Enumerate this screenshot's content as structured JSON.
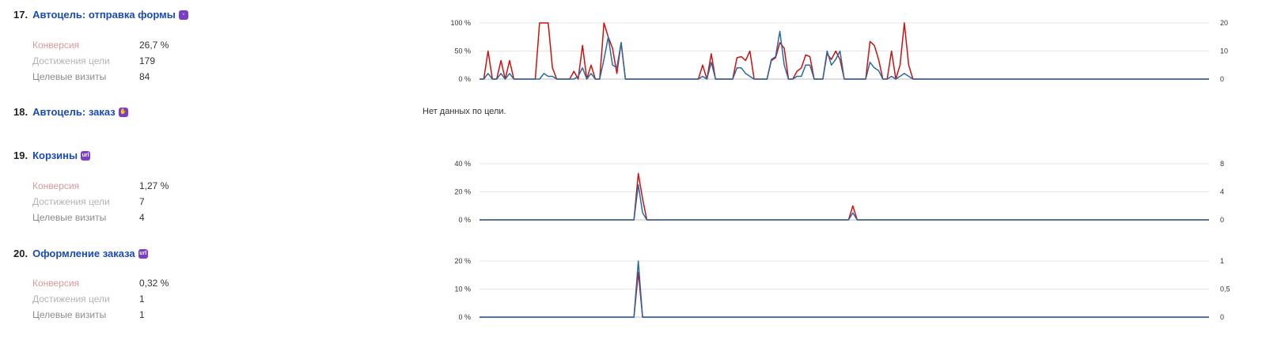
{
  "goals": [
    {
      "number": "17.",
      "title": "Автоцель: отправка формы",
      "badge_icon": "form-icon",
      "stats": [
        {
          "label": "Конверсия",
          "value": "26,7 %"
        },
        {
          "label": "Достижения цели",
          "value": "179"
        },
        {
          "label": "Целевые визиты",
          "value": "84"
        }
      ]
    },
    {
      "number": "18.",
      "title": "Автоцель: заказ",
      "badge_icon": "hand-icon",
      "no_data": "Нет данных по цели."
    },
    {
      "number": "19.",
      "title": "Корзины",
      "badge_icon": "url-icon",
      "stats": [
        {
          "label": "Конверсия",
          "value": "1,27 %"
        },
        {
          "label": "Достижения цели",
          "value": "7"
        },
        {
          "label": "Целевые визиты",
          "value": "4"
        }
      ]
    },
    {
      "number": "20.",
      "title": "Оформление заказа",
      "badge_icon": "url-icon",
      "stats": [
        {
          "label": "Конверсия",
          "value": "0,32 %"
        },
        {
          "label": "Достижения цели",
          "value": "1"
        },
        {
          "label": "Целевые визиты",
          "value": "1"
        }
      ]
    }
  ],
  "colors": {
    "conversion": "#cc1111",
    "visits": "#2b6aa0",
    "grid": "#e6e6e6",
    "title": "#1a4bb5"
  },
  "chart_data": [
    {
      "type": "line",
      "goal": "17.",
      "points_count": 101,
      "y_left": {
        "ticks": [
          "0 %",
          "50 %",
          "100 %"
        ],
        "range": [
          0,
          100
        ]
      },
      "y_right": {
        "ticks": [
          "0",
          "10",
          "20"
        ],
        "range": [
          0,
          20
        ]
      },
      "series": [
        {
          "color": "#cc1111",
          "axis": "left",
          "points": [
            [
              0,
              0
            ],
            [
              1,
              0
            ],
            [
              2,
              50
            ],
            [
              3,
              0
            ],
            [
              4,
              0
            ],
            [
              5,
              33
            ],
            [
              6,
              0
            ],
            [
              7,
              33
            ],
            [
              8,
              0
            ],
            [
              9,
              0
            ],
            [
              10,
              0
            ],
            [
              11,
              0
            ],
            [
              12,
              0
            ],
            [
              13,
              0
            ],
            [
              14,
              100
            ],
            [
              15,
              100
            ],
            [
              16,
              100
            ],
            [
              17,
              20
            ],
            [
              18,
              0
            ],
            [
              19,
              0
            ],
            [
              20,
              0
            ],
            [
              21,
              0
            ],
            [
              22,
              14
            ],
            [
              23,
              0
            ],
            [
              24,
              60
            ],
            [
              25,
              0
            ],
            [
              26,
              25
            ],
            [
              27,
              0
            ],
            [
              28,
              0
            ],
            [
              29,
              100
            ],
            [
              30,
              75
            ],
            [
              31,
              55
            ],
            [
              32,
              10
            ],
            [
              33,
              65
            ],
            [
              34,
              0
            ],
            [
              38,
              0
            ],
            [
              50,
              0
            ],
            [
              51,
              0
            ],
            [
              52,
              25
            ],
            [
              53,
              0
            ],
            [
              54,
              45
            ],
            [
              55,
              0
            ],
            [
              56,
              0
            ],
            [
              57,
              0
            ],
            [
              58,
              0
            ],
            [
              59,
              0
            ],
            [
              60,
              38
            ],
            [
              61,
              40
            ],
            [
              62,
              33
            ],
            [
              63,
              50
            ],
            [
              64,
              0
            ],
            [
              65,
              0
            ],
            [
              66,
              0
            ],
            [
              67,
              0
            ],
            [
              68,
              33
            ],
            [
              69,
              38
            ],
            [
              70,
              65
            ],
            [
              71,
              55
            ],
            [
              72,
              0
            ],
            [
              73,
              0
            ],
            [
              74,
              14
            ],
            [
              75,
              20
            ],
            [
              76,
              43
            ],
            [
              77,
              40
            ],
            [
              78,
              0
            ],
            [
              79,
              0
            ],
            [
              80,
              0
            ],
            [
              81,
              45
            ],
            [
              82,
              35
            ],
            [
              83,
              50
            ],
            [
              84,
              35
            ],
            [
              85,
              0
            ],
            [
              86,
              0
            ],
            [
              87,
              0
            ],
            [
              88,
              0
            ],
            [
              89,
              0
            ],
            [
              90,
              0
            ],
            [
              91,
              67
            ],
            [
              92,
              60
            ],
            [
              93,
              35
            ],
            [
              94,
              0
            ],
            [
              95,
              0
            ],
            [
              96,
              50
            ],
            [
              97,
              0
            ],
            [
              98,
              25
            ],
            [
              99,
              100
            ],
            [
              100,
              25
            ],
            [
              101,
              0
            ],
            [
              116,
              0
            ],
            [
              119,
              0
            ],
            [
              170,
              0
            ]
          ]
        },
        {
          "color": "#2b6aa0",
          "axis": "right",
          "points": [
            [
              0,
              0
            ],
            [
              1,
              0
            ],
            [
              2,
              2
            ],
            [
              3,
              0
            ],
            [
              4,
              0
            ],
            [
              5,
              2
            ],
            [
              6,
              0
            ],
            [
              7,
              2
            ],
            [
              8,
              0
            ],
            [
              14,
              0
            ],
            [
              15,
              2
            ],
            [
              16,
              1
            ],
            [
              17,
              1
            ],
            [
              18,
              0
            ],
            [
              22,
              0
            ],
            [
              23,
              1
            ],
            [
              24,
              4
            ],
            [
              25,
              0
            ],
            [
              26,
              2
            ],
            [
              27,
              0
            ],
            [
              28,
              0
            ],
            [
              29,
              7
            ],
            [
              30,
              15
            ],
            [
              31,
              5
            ],
            [
              32,
              4
            ],
            [
              33,
              13
            ],
            [
              34,
              0
            ],
            [
              51,
              0
            ],
            [
              52,
              1
            ],
            [
              53,
              0
            ],
            [
              54,
              6
            ],
            [
              55,
              0
            ],
            [
              56,
              0
            ],
            [
              58,
              0
            ],
            [
              59,
              0
            ],
            [
              60,
              4
            ],
            [
              61,
              4
            ],
            [
              62,
              2
            ],
            [
              63,
              1
            ],
            [
              64,
              0
            ],
            [
              67,
              0
            ],
            [
              68,
              7
            ],
            [
              69,
              8
            ],
            [
              70,
              17
            ],
            [
              71,
              5
            ],
            [
              72,
              0
            ],
            [
              73,
              0
            ],
            [
              74,
              1
            ],
            [
              75,
              1
            ],
            [
              76,
              5
            ],
            [
              77,
              5
            ],
            [
              78,
              0
            ],
            [
              80,
              0
            ],
            [
              81,
              10
            ],
            [
              82,
              5
            ],
            [
              83,
              7
            ],
            [
              84,
              10
            ],
            [
              85,
              0
            ],
            [
              90,
              0
            ],
            [
              91,
              6
            ],
            [
              92,
              4
            ],
            [
              93,
              3
            ],
            [
              94,
              0
            ],
            [
              95,
              0
            ],
            [
              96,
              1
            ],
            [
              97,
              0
            ],
            [
              98,
              1
            ],
            [
              99,
              2
            ],
            [
              100,
              1
            ],
            [
              101,
              0
            ],
            [
              170,
              0
            ]
          ]
        }
      ]
    },
    {
      "type": "line",
      "goal": "19.",
      "y_left": {
        "ticks": [
          "0 %",
          "20 %",
          "40 %"
        ],
        "range": [
          0,
          40
        ]
      },
      "y_right": {
        "ticks": [
          "0",
          "4",
          "8"
        ],
        "range": [
          0,
          8
        ]
      },
      "series": [
        {
          "color": "#cc1111",
          "axis": "left",
          "points": [
            [
              0,
              0
            ],
            [
              36,
              0
            ],
            [
              37,
              33
            ],
            [
              38,
              15
            ],
            [
              39,
              0
            ],
            [
              86,
              0
            ],
            [
              87,
              10
            ],
            [
              88,
              0
            ],
            [
              170,
              0
            ]
          ]
        },
        {
          "color": "#2b6aa0",
          "axis": "right",
          "points": [
            [
              0,
              0
            ],
            [
              36,
              0
            ],
            [
              37,
              5
            ],
            [
              38,
              1
            ],
            [
              39,
              0
            ],
            [
              86,
              0
            ],
            [
              87,
              1
            ],
            [
              88,
              0
            ],
            [
              170,
              0
            ]
          ]
        }
      ]
    },
    {
      "type": "line",
      "goal": "20.",
      "y_left": {
        "ticks": [
          "0 %",
          "10 %",
          "20 %"
        ],
        "range": [
          0,
          20
        ]
      },
      "y_right": {
        "ticks": [
          "0",
          "0,5",
          "1"
        ],
        "range": [
          0,
          1
        ]
      },
      "series": [
        {
          "color": "#cc1111",
          "axis": "left",
          "points": [
            [
              0,
              0
            ],
            [
              36,
              0
            ],
            [
              37,
              16
            ],
            [
              38,
              0
            ],
            [
              170,
              0
            ]
          ]
        },
        {
          "color": "#2b6aa0",
          "axis": "right",
          "points": [
            [
              0,
              0
            ],
            [
              36,
              0
            ],
            [
              37,
              1
            ],
            [
              38,
              0
            ],
            [
              170,
              0
            ]
          ]
        }
      ]
    }
  ]
}
